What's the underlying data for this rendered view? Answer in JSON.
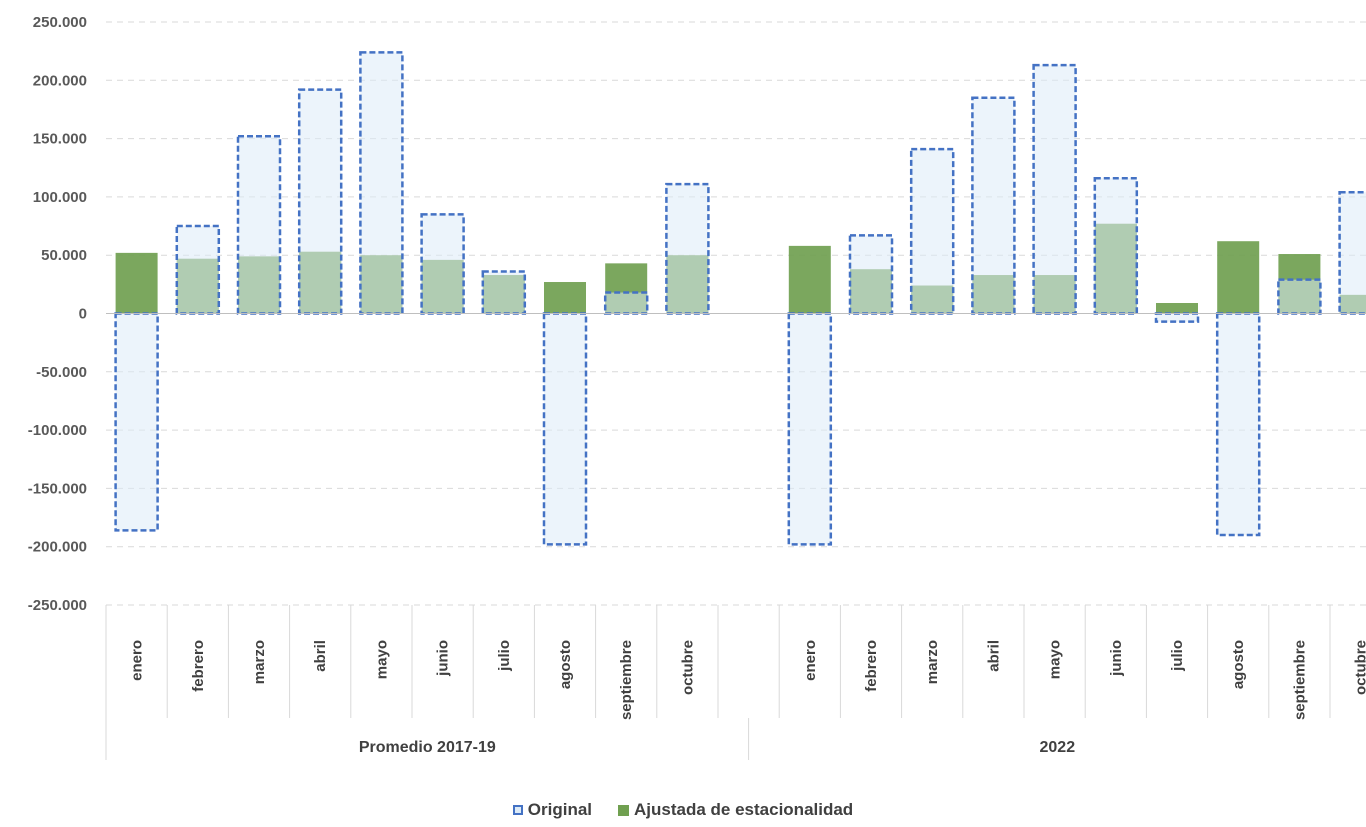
{
  "chart_data": {
    "type": "bar",
    "groups": [
      {
        "name": "Promedio 2017-19",
        "categories": [
          "enero",
          "febrero",
          "marzo",
          "abril",
          "mayo",
          "junio",
          "julio",
          "agosto",
          "septiembre",
          "octubre"
        ]
      },
      {
        "name": "2022",
        "categories": [
          "enero",
          "febrero",
          "marzo",
          "abril",
          "mayo",
          "junio",
          "julio",
          "agosto",
          "septiembre",
          "octubre"
        ]
      }
    ],
    "series": [
      {
        "name": "Original",
        "style": "dashed-outline",
        "fill": "#ddebf7",
        "stroke": "#4472c4",
        "values": [
          [
            -186000,
            75000,
            152000,
            192000,
            224000,
            85000,
            36000,
            -198000,
            18000,
            111000
          ],
          [
            -198000,
            67000,
            141000,
            185000,
            213000,
            116000,
            -7000,
            -190000,
            29000,
            104000
          ]
        ]
      },
      {
        "name": "Ajustada de estacionalidad",
        "style": "solid",
        "fill": "#70a050",
        "values": [
          [
            52000,
            47000,
            49000,
            53000,
            50000,
            46000,
            33000,
            27000,
            43000,
            50000
          ],
          [
            58000,
            38000,
            24000,
            33000,
            33000,
            77000,
            9000,
            62000,
            51000,
            16000
          ]
        ]
      }
    ],
    "ylim": [
      -250000,
      250000
    ],
    "yticks": [
      {
        "value": 250000,
        "label": "250.000"
      },
      {
        "value": 200000,
        "label": "200.000"
      },
      {
        "value": 150000,
        "label": "150.000"
      },
      {
        "value": 100000,
        "label": "100.000"
      },
      {
        "value": 50000,
        "label": "50.000"
      },
      {
        "value": 0,
        "label": "0"
      },
      {
        "value": -50000,
        "label": "-50.000"
      },
      {
        "value": -100000,
        "label": "-100.000"
      },
      {
        "value": -150000,
        "label": "-150.000"
      },
      {
        "value": -200000,
        "label": "-200.000"
      },
      {
        "value": -250000,
        "label": "-250.000"
      }
    ],
    "grid": true,
    "legend_position": "bottom"
  },
  "legend": {
    "original": "Original",
    "adjusted": "Ajustada de estacionalidad"
  }
}
